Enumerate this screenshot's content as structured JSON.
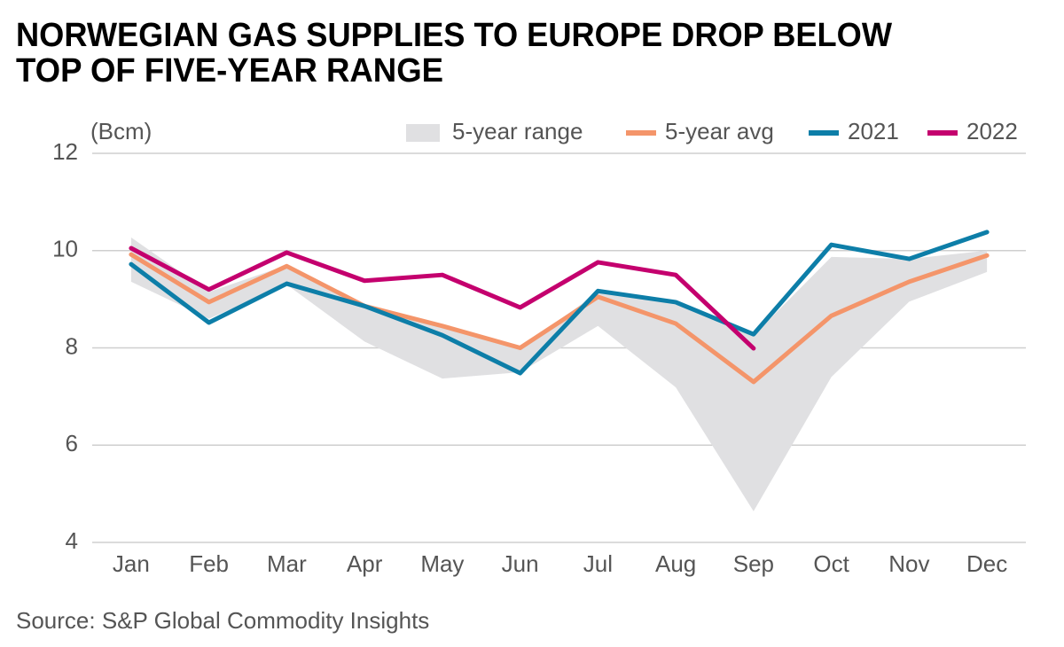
{
  "chart_data": {
    "type": "line",
    "title": [
      "NORWEGIAN GAS SUPPLIES TO EUROPE DROP BELOW",
      "TOP OF FIVE-YEAR RANGE"
    ],
    "y_label": "(Bcm)",
    "source": "Source: S&P Global Commodity Insights",
    "categories": [
      "Jan",
      "Feb",
      "Mar",
      "Apr",
      "May",
      "Jun",
      "Jul",
      "Aug",
      "Sep",
      "Oct",
      "Nov",
      "Dec"
    ],
    "range": {
      "name": "5-year range",
      "color": "#e0e0e2",
      "upper": [
        10.27,
        9.15,
        9.7,
        8.9,
        8.45,
        8.0,
        9.14,
        8.95,
        8.26,
        9.87,
        9.83,
        10.0
      ],
      "lower": [
        9.36,
        8.6,
        9.3,
        8.13,
        7.37,
        7.5,
        8.45,
        7.19,
        4.64,
        7.4,
        8.95,
        9.56
      ]
    },
    "series": [
      {
        "name": "5-year avg",
        "color": "#f4956a",
        "values": [
          9.92,
          8.94,
          9.68,
          8.86,
          8.45,
          8.0,
          9.05,
          8.5,
          7.3,
          8.66,
          9.36,
          9.9
        ]
      },
      {
        "name": "2021",
        "color": "#0d7ea8",
        "values": [
          9.72,
          8.52,
          9.32,
          8.86,
          8.26,
          7.48,
          9.17,
          8.94,
          8.28,
          10.12,
          9.83,
          10.38
        ]
      },
      {
        "name": "2022",
        "color": "#c4006e",
        "values": [
          10.05,
          9.2,
          9.96,
          9.38,
          9.5,
          8.83,
          9.76,
          9.5,
          7.99,
          null,
          null,
          null
        ]
      }
    ],
    "ylim": [
      4,
      12
    ],
    "yticks": [
      4,
      6,
      8,
      10,
      12
    ],
    "grid": true
  }
}
